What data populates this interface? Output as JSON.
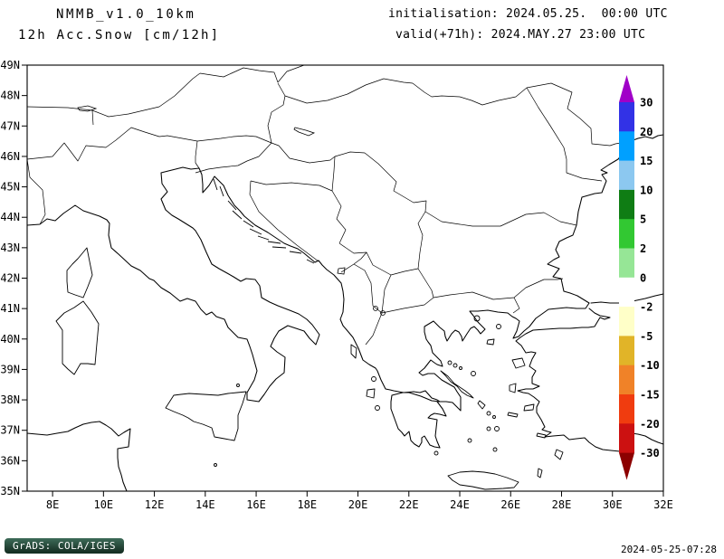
{
  "header": {
    "model": "NMMB_v1.0_10km",
    "field": "12h Acc.Snow [cm/12h]",
    "init": "initialisation: 2024.05.25.  00:00 UTC",
    "valid": "valid(+71h): 2024.MAY.27 23:00 UTC"
  },
  "map": {
    "lat_ticks": [
      "49N",
      "48N",
      "47N",
      "46N",
      "45N",
      "44N",
      "43N",
      "42N",
      "41N",
      "40N",
      "39N",
      "38N",
      "37N",
      "36N",
      "35N"
    ],
    "lon_ticks": [
      "8E",
      "10E",
      "12E",
      "14E",
      "16E",
      "18E",
      "20E",
      "22E",
      "24E",
      "26E",
      "28E",
      "30E",
      "32E"
    ]
  },
  "colorbar": {
    "labels": [
      "30",
      "20",
      "15",
      "10",
      "5",
      "2",
      "0",
      "-2",
      "-5",
      "-10",
      "-15",
      "-20",
      "-30"
    ],
    "segment_colors": [
      "#3232e6",
      "#00a0ff",
      "#8cc8f0",
      "#0f7d14",
      "#32c832",
      "#96e696",
      "#ffffff",
      "#ffffc8",
      "#e1b428",
      "#f08228",
      "#f03c0f",
      "#cc1111"
    ],
    "arrow_top_color": "#a000c8",
    "arrow_bottom_color": "#8c0000"
  },
  "footer": {
    "stamp": "GrADS: COLA/IGES",
    "timestamp": "2024-05-25-07:28"
  }
}
